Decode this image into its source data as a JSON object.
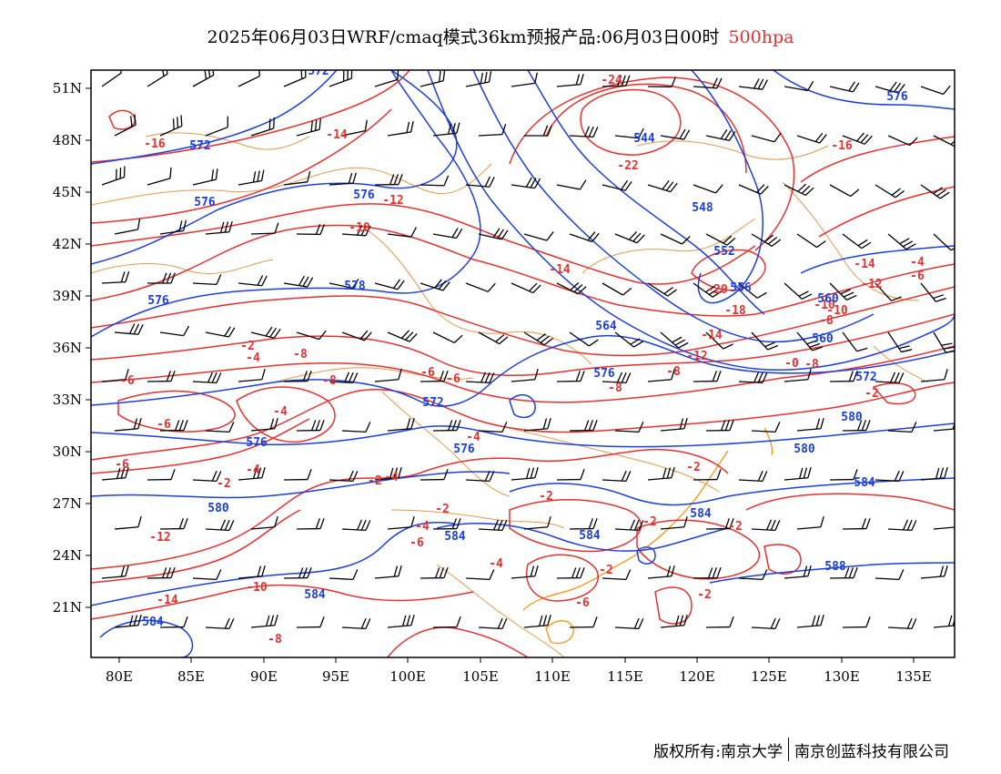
{
  "title": {
    "main": "2025年06月03日WRF/cmaq模式36km预报产品:06月03日00时",
    "level": "500hpa"
  },
  "colors": {
    "temperature": "#e8312f",
    "geopotential": "#1c3fe0",
    "border": "#e39a4c",
    "coast": "#ff8c00",
    "wind": "#000000"
  },
  "x_ticks": [
    "80E",
    "85E",
    "90E",
    "95E",
    "100E",
    "105E",
    "110E",
    "115E",
    "120E",
    "125E",
    "130E",
    "135E"
  ],
  "y_ticks": [
    "51N",
    "48N",
    "45N",
    "42N",
    "39N",
    "36N",
    "33N",
    "30N",
    "27N",
    "24N",
    "21N"
  ],
  "temperature_labels": [
    "-24",
    "-16",
    "-14",
    "-12",
    "-16",
    "-22",
    "-10",
    "-14",
    "-14",
    "-12",
    "-20",
    "-18",
    "-14",
    "-12",
    "-10",
    "-8",
    "-8",
    "-6",
    "-6",
    "-4",
    "-2",
    "-6",
    "-8",
    "-8",
    "-6",
    "-8",
    "-4",
    "-6",
    "-4",
    "-2",
    "-2",
    "-4",
    "-2",
    "-2",
    "-2",
    "-2",
    "-2",
    "-4",
    "-6",
    "-4",
    "-2",
    "-2",
    "-8",
    "-10",
    "-12",
    "-14",
    "-6",
    "-0",
    "-8",
    "-10",
    "-6",
    "-4",
    "-2",
    "-4"
  ],
  "geopotential_labels": [
    "572",
    "572",
    "576",
    "576",
    "578",
    "576",
    "576",
    "544",
    "548",
    "552",
    "556",
    "560",
    "560",
    "564",
    "572",
    "576",
    "572",
    "576",
    "576",
    "580",
    "580",
    "580",
    "584",
    "584",
    "584",
    "584",
    "584",
    "588",
    "584"
  ],
  "copyright": {
    "left": "版权所有:南京大学",
    "right": "南京创蓝科技有限公司"
  }
}
